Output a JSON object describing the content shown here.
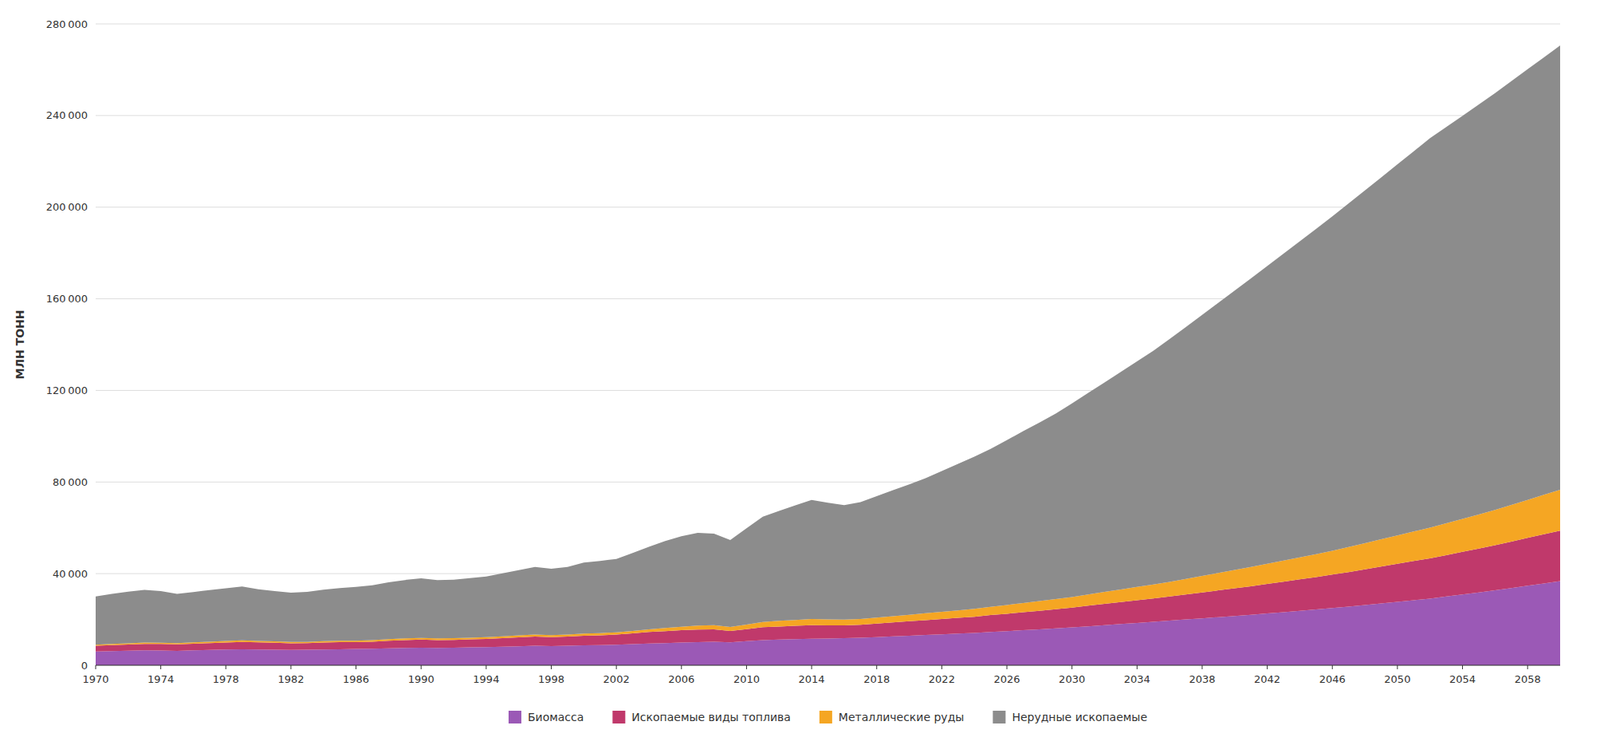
{
  "chart_data": {
    "type": "area",
    "stacked": true,
    "grid": true,
    "legend": "bottom",
    "y_label": "МЛН ТОНН",
    "xlim": [
      1970,
      2060
    ],
    "ylim": [
      0,
      280000
    ],
    "xticks": [
      1970,
      1974,
      1978,
      1982,
      1986,
      1990,
      1994,
      1998,
      2002,
      2006,
      2010,
      2014,
      2018,
      2022,
      2026,
      2030,
      2034,
      2038,
      2042,
      2046,
      2050,
      2054,
      2058
    ],
    "yticks": [
      0,
      {
        "value": 40000,
        "label": "40 000"
      },
      {
        "value": 80000,
        "label": "80 000"
      },
      {
        "value": 120000,
        "label": "120 000"
      },
      {
        "value": 160000,
        "label": "160 000"
      },
      {
        "value": 200000,
        "label": "200 000"
      },
      {
        "value": 240000,
        "label": "240 000"
      },
      {
        "value": 280000,
        "label": "280 000"
      }
    ],
    "x": [
      1970,
      1971,
      1972,
      1973,
      1974,
      1975,
      1976,
      1977,
      1978,
      1979,
      1980,
      1981,
      1982,
      1983,
      1984,
      1985,
      1986,
      1987,
      1988,
      1989,
      1990,
      1991,
      1992,
      1993,
      1994,
      1995,
      1996,
      1997,
      1998,
      1999,
      2000,
      2001,
      2002,
      2003,
      2004,
      2005,
      2006,
      2007,
      2008,
      2009,
      2010,
      2011,
      2012,
      2013,
      2014,
      2015,
      2016,
      2017,
      2018,
      2019,
      2020,
      2021,
      2022,
      2023,
      2024,
      2025,
      2026,
      2027,
      2028,
      2029,
      2030,
      2031,
      2032,
      2033,
      2034,
      2035,
      2036,
      2037,
      2038,
      2039,
      2040,
      2041,
      2042,
      2043,
      2044,
      2045,
      2046,
      2047,
      2048,
      2049,
      2050,
      2051,
      2052,
      2053,
      2054,
      2055,
      2056,
      2057,
      2058,
      2059,
      2060
    ],
    "series": [
      {
        "name": "Биомасса",
        "color": "#9b59b6",
        "values": [
          6000,
          6200,
          6350,
          6500,
          6400,
          6300,
          6500,
          6700,
          6850,
          7000,
          6900,
          6800,
          6700,
          6750,
          6900,
          7000,
          7100,
          7200,
          7400,
          7600,
          7700,
          7600,
          7700,
          7800,
          7900,
          8100,
          8300,
          8500,
          8400,
          8500,
          8700,
          8800,
          9000,
          9200,
          9500,
          9700,
          9900,
          10100,
          10300,
          10000,
          10500,
          11000,
          11200,
          11400,
          11600,
          11700,
          11800,
          12000,
          12300,
          12600,
          12900,
          13200,
          13500,
          13800,
          14100,
          14500,
          14900,
          15300,
          15700,
          16100,
          16500,
          17000,
          17500,
          18000,
          18500,
          19000,
          19500,
          20000,
          20500,
          21000,
          21500,
          22000,
          22600,
          23200,
          23800,
          24400,
          25000,
          25600,
          26300,
          27000,
          27700,
          28400,
          29100,
          30000,
          30900,
          31800,
          32700,
          33700,
          34700,
          35700,
          36700
        ]
      },
      {
        "name": "Ископаемые виды топлива",
        "color": "#c0396b",
        "values": [
          2500,
          2600,
          2700,
          2850,
          2900,
          2800,
          2900,
          3000,
          3100,
          3200,
          3100,
          3000,
          2900,
          2900,
          3000,
          3100,
          3000,
          3100,
          3300,
          3400,
          3500,
          3400,
          3400,
          3500,
          3600,
          3700,
          3900,
          4000,
          3900,
          4000,
          4200,
          4300,
          4400,
          4700,
          5000,
          5200,
          5400,
          5500,
          5400,
          5000,
          5300,
          5600,
          5700,
          5800,
          5900,
          5700,
          5600,
          5700,
          5900,
          6100,
          6300,
          6500,
          6700,
          6900,
          7100,
          7400,
          7600,
          7900,
          8100,
          8400,
          8700,
          9000,
          9300,
          9600,
          9900,
          10200,
          10500,
          10900,
          11300,
          11700,
          12100,
          12500,
          12900,
          13300,
          13700,
          14100,
          14600,
          15100,
          15600,
          16100,
          16600,
          17100,
          17600,
          18100,
          18600,
          19100,
          19700,
          20300,
          20900,
          21500,
          22100
        ]
      },
      {
        "name": "Металлические руды",
        "color": "#f5a623",
        "values": [
          500,
          530,
          560,
          590,
          580,
          550,
          580,
          600,
          630,
          660,
          640,
          610,
          580,
          580,
          610,
          630,
          620,
          640,
          680,
          720,
          750,
          720,
          720,
          740,
          770,
          800,
          840,
          880,
          850,
          880,
          930,
          960,
          1000,
          1100,
          1200,
          1350,
          1500,
          1700,
          1800,
          1700,
          2000,
          2300,
          2500,
          2600,
          2700,
          2600,
          2500,
          2500,
          2600,
          2700,
          2800,
          3000,
          3100,
          3200,
          3400,
          3600,
          3800,
          4000,
          4200,
          4400,
          4600,
          4900,
          5200,
          5500,
          5800,
          6100,
          6400,
          6800,
          7200,
          7600,
          8000,
          8400,
          8800,
          9200,
          9600,
          10000,
          10400,
          10900,
          11400,
          11900,
          12400,
          12900,
          13400,
          13900,
          14400,
          14900,
          15400,
          16000,
          16600,
          17200,
          17800
        ]
      },
      {
        "name": "Нерудные ископаемые",
        "color": "#8c8c8c",
        "values": [
          21000,
          21800,
          22500,
          23000,
          22500,
          21500,
          22000,
          22500,
          23000,
          23500,
          22500,
          22000,
          21500,
          21800,
          22500,
          23000,
          23500,
          24000,
          24800,
          25500,
          26000,
          25500,
          25500,
          26000,
          26500,
          27500,
          28500,
          29500,
          29000,
          29500,
          31000,
          31500,
          32000,
          34000,
          36000,
          38000,
          39500,
          40500,
          40000,
          38000,
          42000,
          46000,
          48000,
          50000,
          52000,
          51000,
          50000,
          51000,
          53000,
          55000,
          57000,
          59000,
          61500,
          64000,
          66500,
          69000,
          72000,
          75000,
          78000,
          81000,
          84500,
          88000,
          91500,
          95000,
          98500,
          102000,
          106000,
          110000,
          114000,
          118000,
          122000,
          126000,
          130000,
          134000,
          138000,
          142000,
          146000,
          150000,
          154000,
          158000,
          162000,
          166000,
          170000,
          173000,
          176000,
          179000,
          182000,
          185000,
          188000,
          191000,
          194000
        ]
      }
    ]
  }
}
